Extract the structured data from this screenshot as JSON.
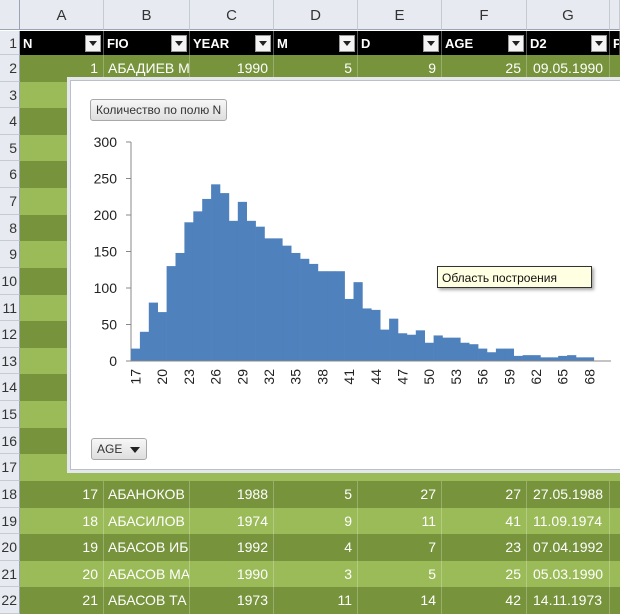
{
  "column_letters": [
    "A",
    "B",
    "C",
    "D",
    "E",
    "F",
    "G"
  ],
  "header_row_number": "1",
  "header_fields": [
    "N",
    "FIO",
    "YEAR",
    "M",
    "D",
    "AGE",
    "D2"
  ],
  "header_partial": "P",
  "rows": [
    {
      "num": "2",
      "cells": [
        "1",
        "АБАДИЕВ М",
        "1990",
        "5",
        "9",
        "25",
        "09.05.1990"
      ]
    },
    {
      "num": "3"
    },
    {
      "num": "4"
    },
    {
      "num": "5"
    },
    {
      "num": "6"
    },
    {
      "num": "7"
    },
    {
      "num": "8"
    },
    {
      "num": "9"
    },
    {
      "num": "10"
    },
    {
      "num": "11"
    },
    {
      "num": "12"
    },
    {
      "num": "13"
    },
    {
      "num": "14"
    },
    {
      "num": "15"
    },
    {
      "num": "16"
    },
    {
      "num": "17"
    },
    {
      "num": "18",
      "cells": [
        "17",
        "АБАНОКОВ",
        "1988",
        "5",
        "27",
        "27",
        "27.05.1988"
      ]
    },
    {
      "num": "19",
      "cells": [
        "18",
        "АБАСИЛОВ",
        "1974",
        "9",
        "11",
        "41",
        "11.09.1974"
      ]
    },
    {
      "num": "20",
      "cells": [
        "19",
        "АБАСОВ ИБ",
        "1992",
        "4",
        "7",
        "23",
        "07.04.1992"
      ]
    },
    {
      "num": "21",
      "cells": [
        "20",
        "АБАСОВ МА",
        "1990",
        "3",
        "5",
        "25",
        "05.03.1990"
      ]
    },
    {
      "num": "22",
      "cells": [
        "21",
        "АБАСОВ ТА",
        "1973",
        "11",
        "14",
        "42",
        "14.11.1973"
      ]
    }
  ],
  "chart": {
    "value_field_button": "Количество по полю N",
    "axis_field_button": "AGE",
    "tooltip": "Область построения",
    "bar_color": "#4f81bd"
  },
  "chart_data": {
    "type": "bar",
    "x": [
      17,
      18,
      19,
      20,
      21,
      22,
      23,
      24,
      25,
      26,
      27,
      28,
      29,
      30,
      31,
      32,
      33,
      34,
      35,
      36,
      37,
      38,
      39,
      40,
      41,
      42,
      43,
      44,
      45,
      46,
      47,
      48,
      49,
      50,
      51,
      52,
      53,
      54,
      55,
      56,
      57,
      58,
      59,
      60,
      61,
      62,
      63,
      64,
      65,
      66,
      67,
      68
    ],
    "values": [
      17,
      40,
      80,
      67,
      130,
      148,
      190,
      205,
      222,
      242,
      230,
      192,
      218,
      192,
      184,
      168,
      168,
      158,
      148,
      140,
      133,
      123,
      123,
      123,
      85,
      108,
      72,
      70,
      43,
      58,
      38,
      36,
      42,
      25,
      35,
      32,
      32,
      25,
      23,
      17,
      12,
      17,
      17,
      7,
      8,
      8,
      5,
      5,
      7,
      8,
      5,
      5
    ],
    "tick_labels": [
      "17",
      "20",
      "23",
      "26",
      "29",
      "32",
      "35",
      "38",
      "41",
      "44",
      "47",
      "50",
      "53",
      "56",
      "59",
      "62",
      "65",
      "68"
    ],
    "ylim": [
      0,
      300
    ],
    "yticks": [
      "0",
      "50",
      "100",
      "150",
      "200",
      "250",
      "300"
    ],
    "grid": false
  }
}
